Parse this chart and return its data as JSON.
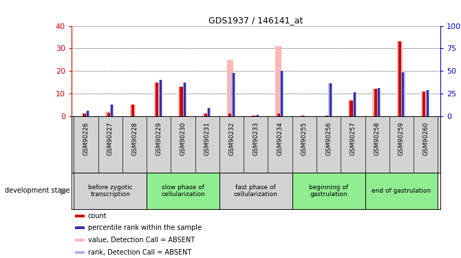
{
  "title": "GDS1937 / 146141_at",
  "samples": [
    "GSM90226",
    "GSM90227",
    "GSM90228",
    "GSM90229",
    "GSM90230",
    "GSM90231",
    "GSM90232",
    "GSM90233",
    "GSM90234",
    "GSM90255",
    "GSM90256",
    "GSM90257",
    "GSM90258",
    "GSM90259",
    "GSM90260"
  ],
  "value_absent": [
    0,
    2.0,
    5.0,
    15.0,
    13.0,
    1.0,
    25.0,
    0.3,
    31.0,
    0.3,
    0.3,
    7.0,
    12.0,
    33.0,
    11.0
  ],
  "rank_absent": [
    2.5,
    5.0,
    0,
    16.0,
    15.0,
    3.5,
    19.0,
    0.5,
    20.0,
    0.0,
    14.5,
    10.5,
    12.5,
    19.5,
    11.5
  ],
  "count_values": [
    1.0,
    1.5,
    5.0,
    15.0,
    13.0,
    1.0,
    1.0,
    0.3,
    1.0,
    0.3,
    0.3,
    7.0,
    12.0,
    33.0,
    11.0
  ],
  "rank_values": [
    2.5,
    5.0,
    0,
    16.0,
    15.0,
    3.5,
    19.0,
    0.5,
    20.0,
    0.0,
    14.5,
    10.5,
    12.5,
    19.5,
    11.5
  ],
  "stages": [
    {
      "label": "before zygotic\ntranscription",
      "start": 0,
      "end": 3,
      "color": "#d3d3d3"
    },
    {
      "label": "slow phase of\ncellularization",
      "start": 3,
      "end": 6,
      "color": "#90ee90"
    },
    {
      "label": "fast phase of\ncellularization",
      "start": 6,
      "end": 9,
      "color": "#d3d3d3"
    },
    {
      "label": "beginning of\ngastrulation",
      "start": 9,
      "end": 12,
      "color": "#90ee90"
    },
    {
      "label": "end of gastrulation",
      "start": 12,
      "end": 15,
      "color": "#90ee90"
    }
  ],
  "ylim_left": [
    0,
    40
  ],
  "ylim_right": [
    0,
    100
  ],
  "yticks_left": [
    0,
    10,
    20,
    30,
    40
  ],
  "yticks_right": [
    0,
    25,
    50,
    75,
    100
  ],
  "count_color": "#cc0000",
  "rank_color": "#3333aa",
  "value_absent_color": "#ffb6b6",
  "rank_absent_color": "#b0b8e8",
  "legend_items": [
    {
      "label": "count",
      "color": "#cc0000"
    },
    {
      "label": "percentile rank within the sample",
      "color": "#3333aa"
    },
    {
      "label": "value, Detection Call = ABSENT",
      "color": "#ffb6b6"
    },
    {
      "label": "rank, Detection Call = ABSENT",
      "color": "#b0b8e8"
    }
  ],
  "dev_stage_label": "development stage",
  "background_color": "#ffffff",
  "axis_label_color_left": "#cc0000",
  "axis_label_color_right": "#0000cc",
  "sample_bg_color": "#d3d3d3"
}
